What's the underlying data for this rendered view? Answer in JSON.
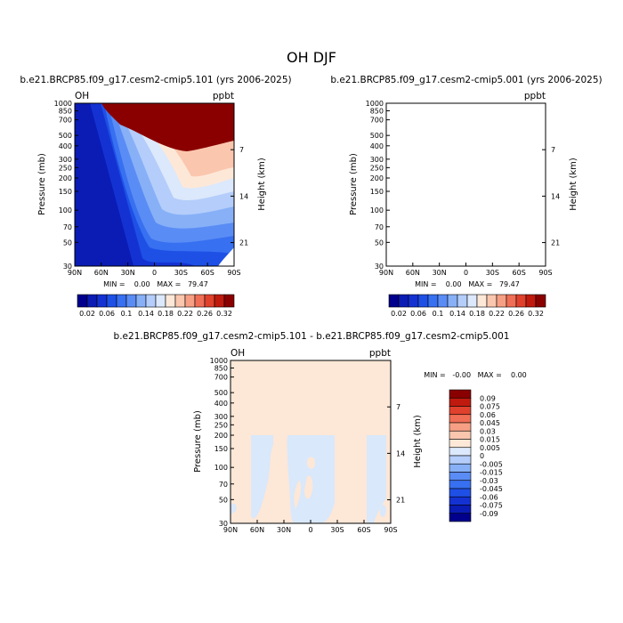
{
  "page_title": "OH DJF",
  "chart_data": [
    {
      "type": "heatmap",
      "title": "b.e21.BRCP85.f09_g17.cesm2-cmip5.101 (yrs 2006-2025)",
      "corner_left": "OH",
      "corner_right": "ppbt",
      "xlabel": "",
      "ylabel": "Pressure (mb)",
      "ylabel_right": "Height (km)",
      "x_ticks": [
        "90N",
        "60N",
        "30N",
        "0",
        "30S",
        "60S",
        "90S"
      ],
      "y_ticks": [
        "30",
        "50",
        "70",
        "100",
        "150",
        "200",
        "250",
        "300",
        "400",
        "500",
        "700",
        "850",
        "1000"
      ],
      "right_ticks": [
        "21",
        "14",
        "7"
      ],
      "y_scale": "log",
      "ylim": [
        1000,
        30
      ],
      "stats": "MIN =    0.00   MAX =   79.47",
      "colorbar_labels": [
        "0.02",
        "0.06",
        "0.1",
        "0.14",
        "0.18",
        "0.22",
        "0.26",
        "0.32"
      ],
      "colorbar_levels": [
        0.02,
        0.04,
        0.06,
        0.08,
        0.1,
        0.12,
        0.14,
        0.16,
        0.18,
        0.2,
        0.22,
        0.24,
        0.26,
        0.28,
        0.32
      ]
    },
    {
      "type": "heatmap",
      "title": "b.e21.BRCP85.f09_g17.cesm2-cmip5.001 (yrs 2006-2025)",
      "corner_left": "",
      "corner_right": "ppbt",
      "xlabel": "",
      "ylabel": "Pressure (mb)",
      "ylabel_right": "Height (km)",
      "x_ticks": [
        "90N",
        "60N",
        "30N",
        "0",
        "30S",
        "60S",
        "90S"
      ],
      "y_ticks": [
        "30",
        "50",
        "70",
        "100",
        "150",
        "200",
        "250",
        "300",
        "400",
        "500",
        "700",
        "850",
        "1000"
      ],
      "right_ticks": [
        "21",
        "14",
        "7"
      ],
      "y_scale": "log",
      "ylim": [
        1000,
        30
      ],
      "stats": "MIN =    0.00   MAX =   79.47",
      "colorbar_labels": [
        "0.02",
        "0.06",
        "0.1",
        "0.14",
        "0.18",
        "0.22",
        "0.26",
        "0.32"
      ],
      "colorbar_levels": [
        0.02,
        0.04,
        0.06,
        0.08,
        0.1,
        0.12,
        0.14,
        0.16,
        0.18,
        0.2,
        0.22,
        0.24,
        0.26,
        0.28,
        0.32
      ]
    },
    {
      "type": "heatmap",
      "title": "b.e21.BRCP85.f09_g17.cesm2-cmip5.101 - b.e21.BRCP85.f09_g17.cesm2-cmip5.001",
      "corner_left": "OH",
      "corner_right": "ppbt",
      "xlabel": "",
      "ylabel": "Pressure (mb)",
      "ylabel_right": "Height (km)",
      "x_ticks": [
        "90N",
        "60N",
        "30N",
        "0",
        "30S",
        "60S",
        "90S"
      ],
      "y_ticks": [
        "30",
        "50",
        "70",
        "100",
        "150",
        "200",
        "250",
        "300",
        "400",
        "500",
        "700",
        "850",
        "1000"
      ],
      "right_ticks": [
        "21",
        "14",
        "7"
      ],
      "y_scale": "log",
      "ylim": [
        1000,
        30
      ],
      "stats": "MIN =   -0.00   MAX =    0.00",
      "colorbar_labels": [
        "0.09",
        "0.075",
        "0.06",
        "0.045",
        "0.03",
        "0.015",
        "0.005",
        "0",
        "-0.005",
        "-0.015",
        "-0.03",
        "-0.045",
        "-0.06",
        "-0.075",
        "-0.09"
      ],
      "colorbar_levels": [
        -0.09,
        -0.075,
        -0.06,
        -0.045,
        -0.03,
        -0.015,
        -0.005,
        0,
        0.005,
        0.015,
        0.03,
        0.045,
        0.06,
        0.075,
        0.09
      ]
    }
  ],
  "colors": {
    "scale": [
      "#00008c",
      "#0a1cb4",
      "#1432d2",
      "#1e50e6",
      "#3770f0",
      "#5a8cf5",
      "#87b0f7",
      "#b4cdfa",
      "#dce8fb",
      "#fde8d8",
      "#fbc6ae",
      "#f79f84",
      "#f06e55",
      "#e0412d",
      "#c01a0e",
      "#8a0000"
    ],
    "diff_pos": "#fde7d7",
    "diff_neg": "#d9e8fb"
  }
}
